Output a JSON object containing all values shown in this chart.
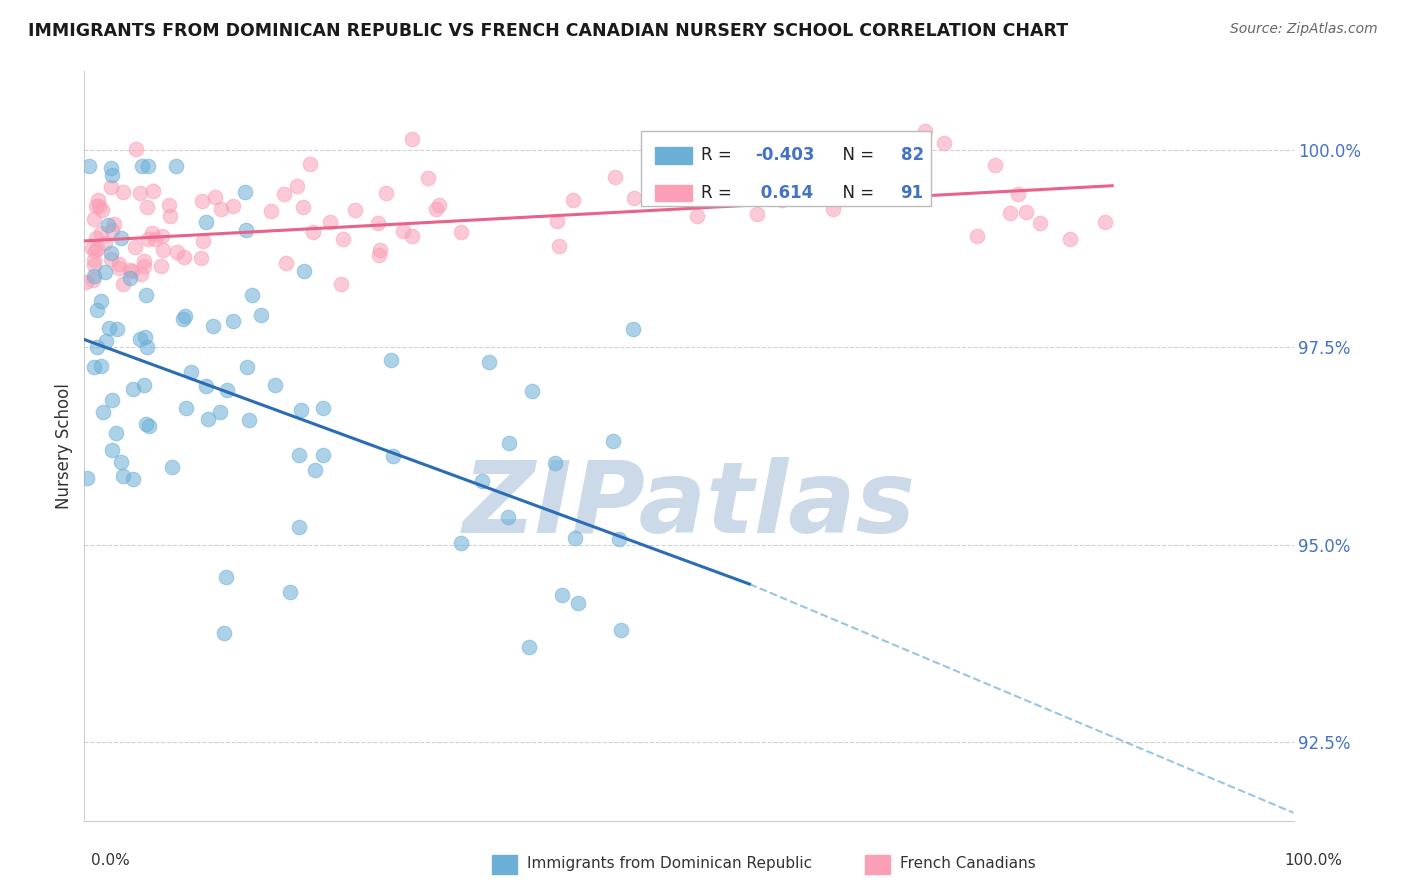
{
  "title": "IMMIGRANTS FROM DOMINICAN REPUBLIC VS FRENCH CANADIAN NURSERY SCHOOL CORRELATION CHART",
  "source": "Source: ZipAtlas.com",
  "ylabel": "Nursery School",
  "yticks": [
    92.5,
    95.0,
    97.5,
    100.0
  ],
  "ytick_labels": [
    "92.5%",
    "95.0%",
    "97.5%",
    "100.0%"
  ],
  "xlim": [
    0.0,
    100.0
  ],
  "ylim": [
    91.5,
    101.0
  ],
  "blue_R": -0.403,
  "blue_N": 82,
  "pink_R": 0.614,
  "pink_N": 91,
  "blue_color": "#6baed6",
  "pink_color": "#fa9fb5",
  "blue_legend": "Immigrants from Dominican Republic",
  "pink_legend": "French Canadians",
  "watermark": "ZIPatlas",
  "watermark_color": "#ccd9e8",
  "background_color": "#ffffff",
  "blue_trend_start_x": 0,
  "blue_trend_end_x": 55,
  "blue_trend_start_y": 97.6,
  "blue_trend_end_y": 94.5,
  "pink_trend_start_x": 0,
  "pink_trend_end_x": 85,
  "pink_trend_start_y": 98.85,
  "pink_trend_end_y": 99.55,
  "dash_start_x": 55,
  "dash_end_x": 100,
  "dash_start_y": 94.5,
  "dash_end_y": 91.6
}
